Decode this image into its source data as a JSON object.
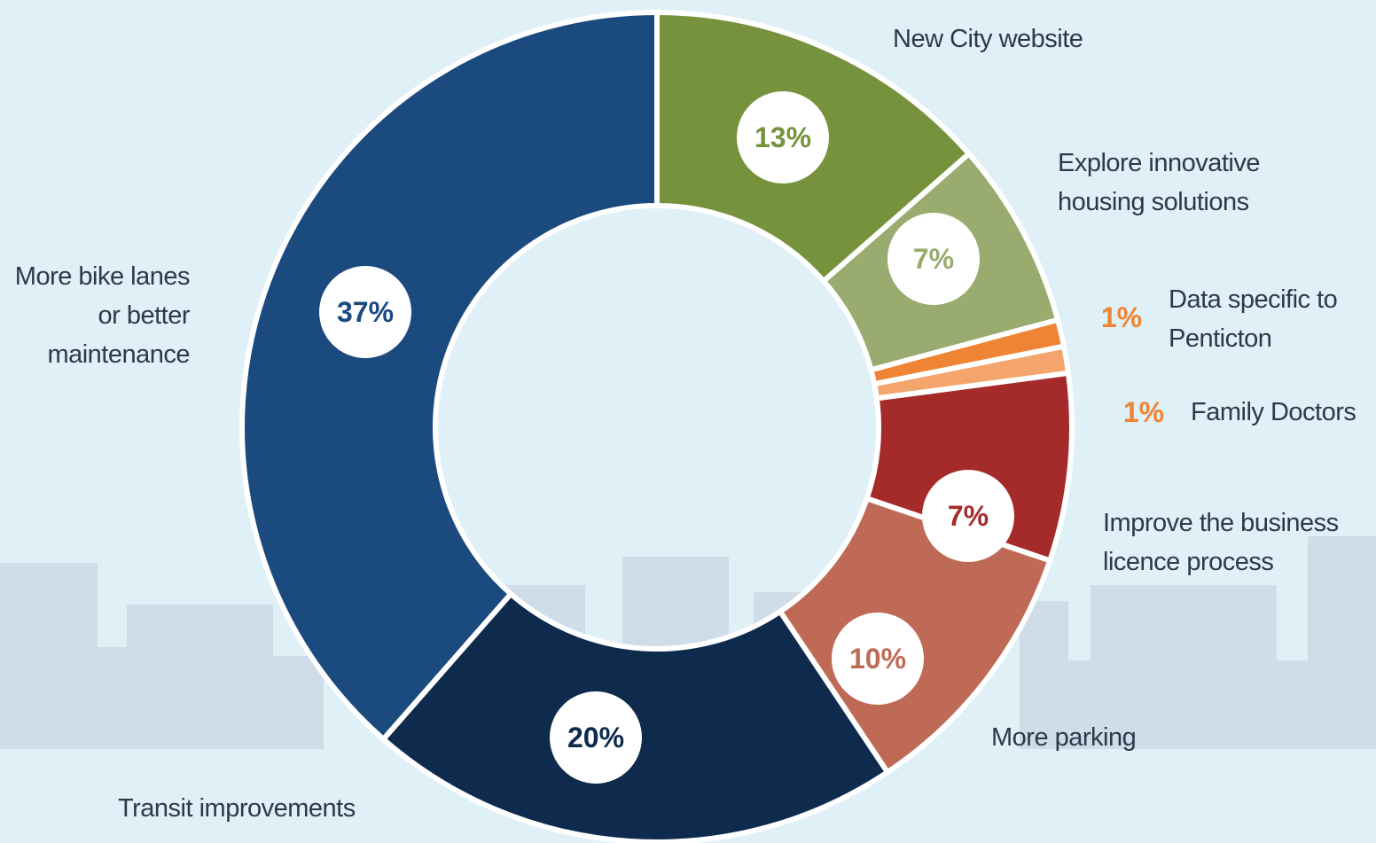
{
  "chart_data": {
    "type": "donut",
    "categories": [
      "New City website",
      "Explore innovative housing solutions",
      "Data specific to Penticton",
      "Family Doctors",
      "Improve the business licence process",
      "More parking",
      "Transit improvements",
      "More bike lanes or better maintenance"
    ],
    "values": [
      13,
      7,
      1,
      1,
      7,
      10,
      20,
      37
    ],
    "value_labels": [
      "13%",
      "7%",
      "1%",
      "1%",
      "7%",
      "10%",
      "20%",
      "37%"
    ],
    "colors": [
      "#76923c",
      "#9aab6f",
      "#ef8434",
      "#f4a56e",
      "#a52a2a",
      "#bf6a56",
      "#0e2a4d",
      "#1a4a7e"
    ]
  }
}
